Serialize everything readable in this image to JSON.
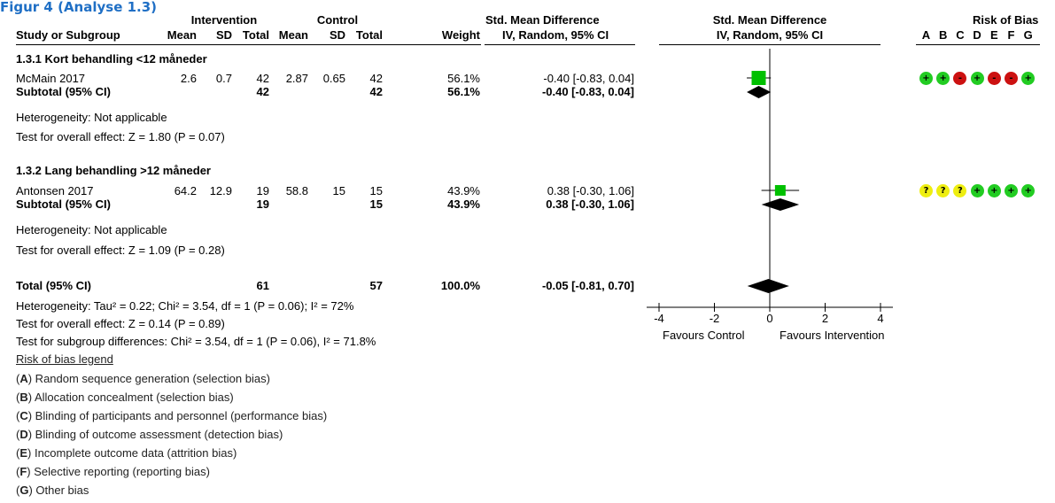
{
  "figure": {
    "title": "Figur 4 (Analyse 1.3)"
  },
  "header": {
    "group_intervention": "Intervention",
    "group_control": "Control",
    "effect_title": "Std. Mean Difference",
    "effect_method": "IV, Random, 95% CI",
    "plot_title": "Std. Mean Difference",
    "plot_method": "IV, Random, 95% CI",
    "rob_title": "Risk of Bias",
    "study_col": "Study or Subgroup",
    "mean": "Mean",
    "sd": "SD",
    "total": "Total",
    "weight": "Weight",
    "rob_letters": [
      "A",
      "B",
      "C",
      "D",
      "E",
      "F",
      "G"
    ]
  },
  "subgroups": [
    {
      "title": "1.3.1 Kort behandling <12 måneder",
      "study": {
        "name": "McMain 2017",
        "i_mean": "2.6",
        "i_sd": "0.7",
        "i_total": "42",
        "c_mean": "2.87",
        "c_sd": "0.65",
        "c_total": "42",
        "weight": "56.1%",
        "effect": "-0.40 [-0.83, 0.04]",
        "rob": [
          "+",
          "+",
          "-",
          "+",
          "-",
          "-",
          "+"
        ]
      },
      "subtotal": {
        "label": "Subtotal (95% CI)",
        "i_total": "42",
        "c_total": "42",
        "weight": "56.1%",
        "effect": "-0.40 [-0.83, 0.04]"
      },
      "heterogeneity": "Heterogeneity: Not applicable",
      "overall": "Test for overall effect: Z = 1.80 (P = 0.07)"
    },
    {
      "title": "1.3.2 Lang behandling >12 måneder",
      "study": {
        "name": "Antonsen 2017",
        "i_mean": "64.2",
        "i_sd": "12.9",
        "i_total": "19",
        "c_mean": "58.8",
        "c_sd": "15",
        "c_total": "15",
        "weight": "43.9%",
        "effect": "0.38 [-0.30, 1.06]",
        "rob": [
          "?",
          "?",
          "?",
          "+",
          "+",
          "+",
          "+"
        ]
      },
      "subtotal": {
        "label": "Subtotal (95% CI)",
        "i_total": "19",
        "c_total": "15",
        "weight": "43.9%",
        "effect": "0.38 [-0.30, 1.06]"
      },
      "heterogeneity": "Heterogeneity: Not applicable",
      "overall": "Test for overall effect: Z = 1.09 (P = 0.28)"
    }
  ],
  "total": {
    "label": "Total (95% CI)",
    "i_total": "61",
    "c_total": "57",
    "weight": "100.0%",
    "effect": "-0.05 [-0.81, 0.70]",
    "heterogeneity": "Heterogeneity: Tau² = 0.22; Chi² = 3.54, df = 1 (P = 0.06); I² = 72%",
    "overall": "Test for overall effect: Z = 0.14 (P = 0.89)",
    "subgroup_diff": "Test for subgroup differences: Chi² = 3.54, df = 1 (P = 0.06), I² = 71.8%"
  },
  "axis_labels": {
    "favours_left": "Favours Control",
    "favours_right": "Favours Intervention"
  },
  "legend": {
    "title": "Risk of bias legend",
    "items": [
      {
        "letter": "A",
        "text": "Random sequence generation (selection bias)"
      },
      {
        "letter": "B",
        "text": "Allocation concealment (selection bias)"
      },
      {
        "letter": "C",
        "text": "Blinding of participants and personnel (performance bias)"
      },
      {
        "letter": "D",
        "text": "Blinding of outcome assessment (detection bias)"
      },
      {
        "letter": "E",
        "text": "Incomplete outcome data (attrition bias)"
      },
      {
        "letter": "F",
        "text": "Selective reporting (reporting bias)"
      },
      {
        "letter": "G",
        "text": "Other bias"
      }
    ]
  },
  "colors": {
    "square": "#00c000",
    "diamond": "#000000",
    "rob_low": "#22cc22",
    "rob_high": "#cc1111",
    "rob_unclear": "#eeee11"
  },
  "chart_data": {
    "type": "forest",
    "xlim": [
      -4,
      4
    ],
    "ticks": [
      -4,
      -2,
      0,
      2,
      4
    ],
    "tick_labels": [
      "-4",
      "-2",
      "0",
      "2",
      "4"
    ],
    "studies": [
      {
        "name": "McMain 2017",
        "est": -0.4,
        "lo": -0.83,
        "hi": 0.04,
        "weight": 56.1
      },
      {
        "name": "Antonsen 2017",
        "est": 0.38,
        "lo": -0.3,
        "hi": 1.06,
        "weight": 43.9
      }
    ],
    "diamonds": [
      {
        "name": "Subtotal 1.3.1",
        "est": -0.4,
        "lo": -0.83,
        "hi": 0.04
      },
      {
        "name": "Subtotal 1.3.2",
        "est": 0.38,
        "lo": -0.3,
        "hi": 1.06
      },
      {
        "name": "Total",
        "est": -0.05,
        "lo": -0.81,
        "hi": 0.7
      }
    ]
  }
}
